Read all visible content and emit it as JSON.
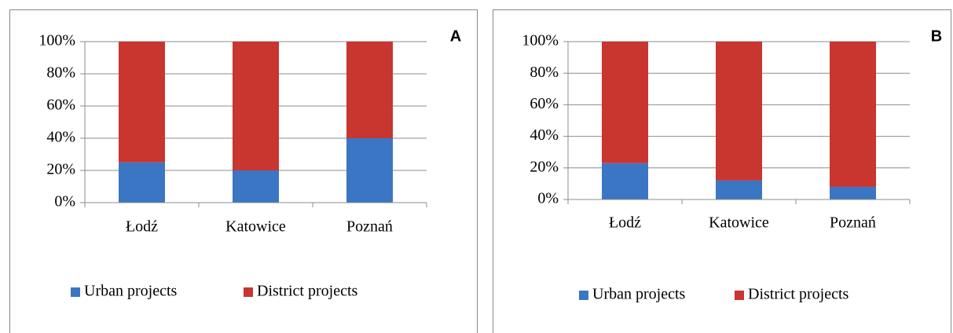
{
  "chart_data": [
    {
      "type": "stacked_bar",
      "title": "A",
      "categories": [
        "Łodź",
        "Katowice",
        "Poznań"
      ],
      "series": [
        {
          "name": "Urban projects",
          "color": "#3a76c4",
          "values": [
            25,
            20,
            40
          ]
        },
        {
          "name": "District projects",
          "color": "#c9352f",
          "values": [
            75,
            80,
            60
          ]
        }
      ],
      "ylim": [
        0,
        100
      ],
      "yticks": [
        {
          "value": 0,
          "label": "0%"
        },
        {
          "value": 20,
          "label": "20%"
        },
        {
          "value": 40,
          "label": "40%"
        },
        {
          "value": 60,
          "label": "60%"
        },
        {
          "value": 80,
          "label": "80%"
        },
        {
          "value": 100,
          "label": "100%"
        }
      ],
      "grid": true,
      "legend": "bottom"
    },
    {
      "type": "stacked_bar",
      "title": "B",
      "categories": [
        "Łodź",
        "Katowice",
        "Poznań"
      ],
      "series": [
        {
          "name": "Urban projects",
          "color": "#3a76c4",
          "values": [
            23,
            12,
            8
          ]
        },
        {
          "name": "District projects",
          "color": "#c9352f",
          "values": [
            77,
            88,
            92
          ]
        }
      ],
      "ylim": [
        0,
        100
      ],
      "yticks": [
        {
          "value": 0,
          "label": "0%"
        },
        {
          "value": 20,
          "label": "20%"
        },
        {
          "value": 40,
          "label": "40%"
        },
        {
          "value": 60,
          "label": "60%"
        },
        {
          "value": 80,
          "label": "80%"
        },
        {
          "value": 100,
          "label": "100%"
        }
      ],
      "grid": true,
      "legend": "bottom"
    }
  ]
}
